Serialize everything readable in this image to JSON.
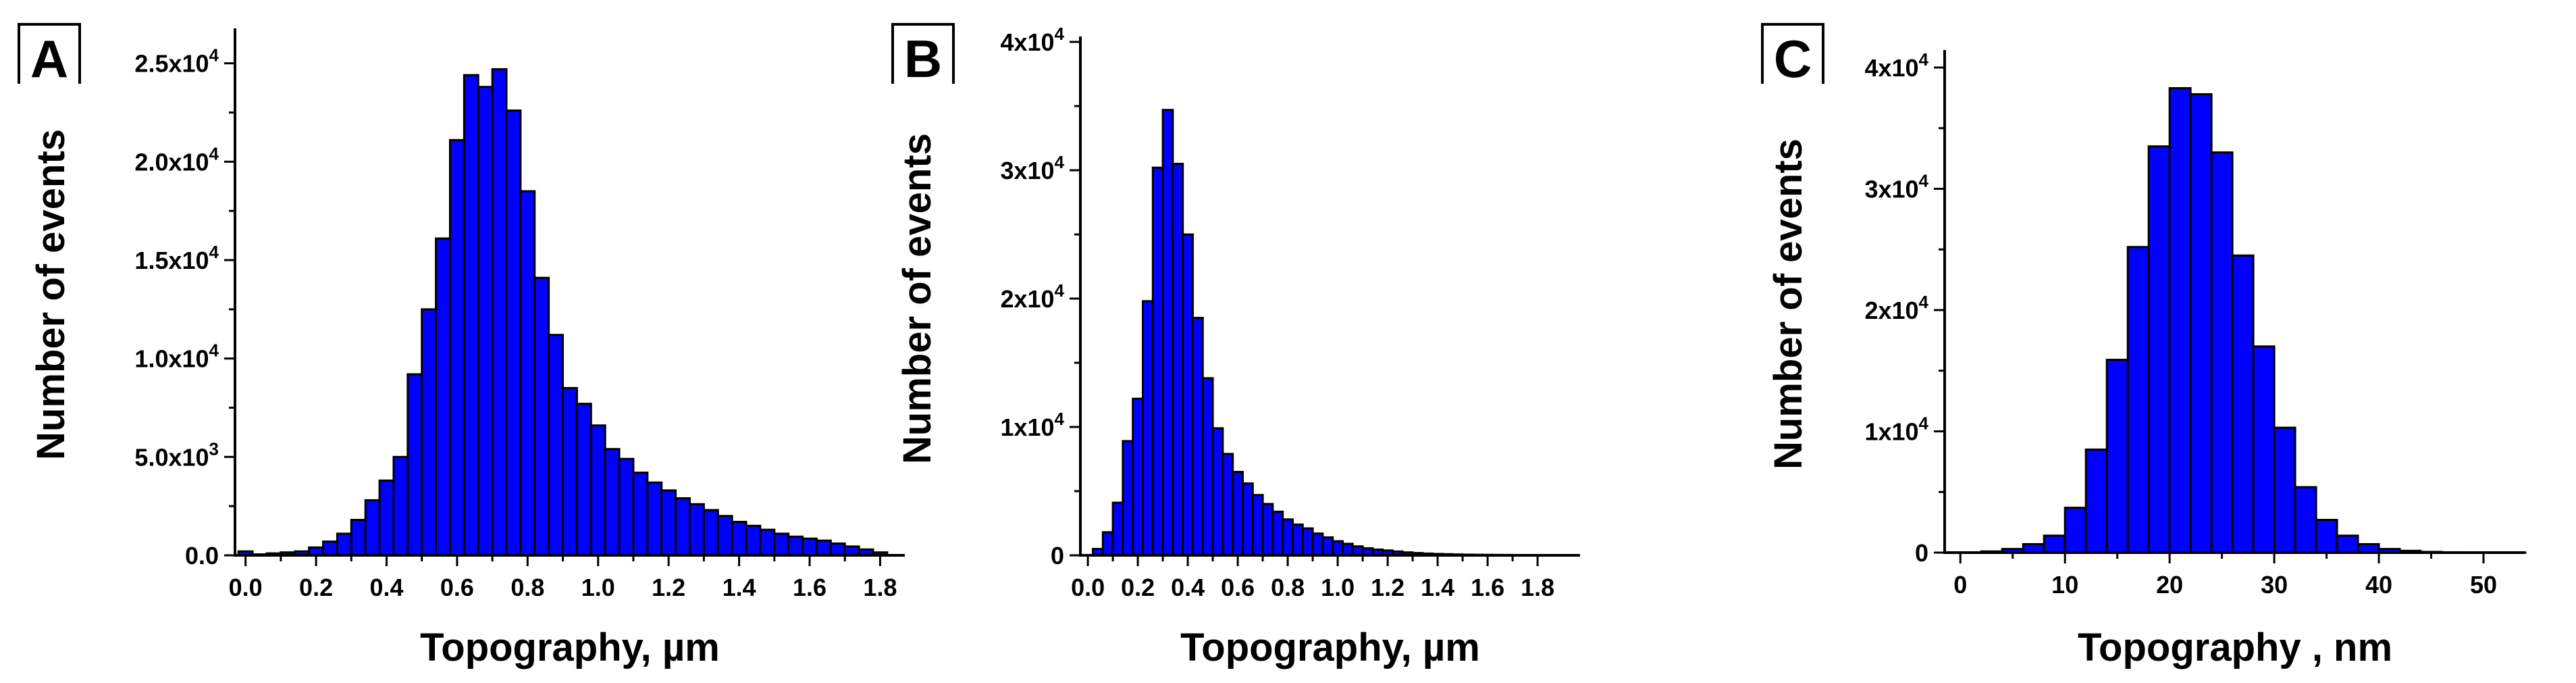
{
  "figure": {
    "panels": [
      {
        "letter": "A"
      },
      {
        "letter": "B"
      },
      {
        "letter": "C"
      }
    ]
  },
  "chart_data": [
    {
      "type": "bar",
      "panel_label": "A",
      "xlabel": "Topography, µm",
      "ylabel": "Number of events",
      "xlim": [
        -0.03,
        1.87
      ],
      "ylim": [
        0,
        26500
      ],
      "bin_width": 0.04,
      "bar_fill": "#0000ff",
      "bar_stroke": "#000000",
      "xticks": [
        0.0,
        0.2,
        0.4,
        0.6,
        0.8,
        1.0,
        1.2,
        1.4,
        1.6,
        1.8
      ],
      "xtick_labels": [
        "0.0",
        "0.2",
        "0.4",
        "0.6",
        "0.8",
        "1.0",
        "1.2",
        "1.4",
        "1.6",
        "1.8"
      ],
      "yticks": [
        0,
        5000,
        10000,
        15000,
        20000,
        25000
      ],
      "ytick_labels": [
        {
          "mantissa": "0.0",
          "exp": ""
        },
        {
          "mantissa": "5.0x10",
          "exp": "3"
        },
        {
          "mantissa": "1.0x10",
          "exp": "4"
        },
        {
          "mantissa": "1.5x10",
          "exp": "4"
        },
        {
          "mantissa": "2.0x10",
          "exp": "4"
        },
        {
          "mantissa": "2.5x10",
          "exp": "4"
        }
      ],
      "bins": [
        0.0,
        0.04,
        0.08,
        0.12,
        0.16,
        0.2,
        0.24,
        0.28,
        0.32,
        0.36,
        0.4,
        0.44,
        0.48,
        0.52,
        0.56,
        0.6,
        0.64,
        0.68,
        0.72,
        0.76,
        0.8,
        0.84,
        0.88,
        0.92,
        0.96,
        1.0,
        1.04,
        1.08,
        1.12,
        1.16,
        1.2,
        1.24,
        1.28,
        1.32,
        1.36,
        1.4,
        1.44,
        1.48,
        1.52,
        1.56,
        1.6,
        1.64,
        1.68,
        1.72,
        1.76,
        1.8
      ],
      "values": [
        200,
        50,
        100,
        150,
        200,
        400,
        700,
        1100,
        1800,
        2800,
        3800,
        5000,
        9200,
        12500,
        16100,
        21100,
        24400,
        23800,
        24700,
        22600,
        18500,
        14100,
        11200,
        8500,
        7700,
        6600,
        5400,
        4900,
        4200,
        3700,
        3300,
        2900,
        2600,
        2300,
        2000,
        1700,
        1500,
        1300,
        1100,
        950,
        850,
        750,
        600,
        450,
        300,
        150
      ]
    },
    {
      "type": "bar",
      "panel_label": "B",
      "xlabel": "Topography, µm",
      "ylabel": "Number of events",
      "xlim": [
        -0.03,
        1.97
      ],
      "ylim": [
        0,
        40000
      ],
      "bin_width": 0.04,
      "bar_fill": "#0000ff",
      "bar_stroke": "#000000",
      "xticks": [
        0.0,
        0.2,
        0.4,
        0.6,
        0.8,
        1.0,
        1.2,
        1.4,
        1.6,
        1.8
      ],
      "xtick_labels": [
        "0.0",
        "0.2",
        "0.4",
        "0.6",
        "0.8",
        "1.0",
        "1.2",
        "1.4",
        "1.6",
        "1.8"
      ],
      "yticks": [
        0,
        10000,
        20000,
        30000,
        40000
      ],
      "ytick_labels": [
        {
          "mantissa": "0",
          "exp": ""
        },
        {
          "mantissa": "1x10",
          "exp": "4"
        },
        {
          "mantissa": "2x10",
          "exp": "4"
        },
        {
          "mantissa": "3x10",
          "exp": "4"
        },
        {
          "mantissa": "4x10",
          "exp": "4"
        }
      ],
      "bins": [
        0.04,
        0.08,
        0.12,
        0.16,
        0.2,
        0.24,
        0.28,
        0.32,
        0.36,
        0.4,
        0.44,
        0.48,
        0.52,
        0.56,
        0.6,
        0.64,
        0.68,
        0.72,
        0.76,
        0.8,
        0.84,
        0.88,
        0.92,
        0.96,
        1.0,
        1.04,
        1.08,
        1.12,
        1.16,
        1.2,
        1.24,
        1.28,
        1.32,
        1.36,
        1.4,
        1.44,
        1.48,
        1.52,
        1.56,
        1.6,
        1.64,
        1.68,
        1.72,
        1.76,
        1.8,
        1.84,
        1.88
      ],
      "values": [
        500,
        1800,
        4100,
        8900,
        12200,
        19800,
        30200,
        34700,
        30500,
        25000,
        18500,
        13800,
        9900,
        7900,
        6500,
        5600,
        4700,
        4000,
        3400,
        2800,
        2400,
        2100,
        1700,
        1400,
        1100,
        900,
        700,
        550,
        450,
        380,
        300,
        230,
        180,
        140,
        110,
        90,
        70,
        55,
        45,
        40,
        35,
        30,
        25,
        20,
        15,
        10,
        8
      ]
    },
    {
      "type": "bar",
      "panel_label": "C",
      "xlabel": "Topography , nm",
      "ylabel": "Number of events",
      "xlim": [
        -1.5,
        54
      ],
      "ylim": [
        0,
        41000
      ],
      "bin_width": 2,
      "bar_fill": "#0000ff",
      "bar_stroke": "#000000",
      "xticks": [
        0,
        10,
        20,
        30,
        40,
        50
      ],
      "xtick_labels": [
        "0",
        "10",
        "20",
        "30",
        "40",
        "50"
      ],
      "yticks": [
        0,
        10000,
        20000,
        30000,
        40000
      ],
      "ytick_labels": [
        {
          "mantissa": "0",
          "exp": ""
        },
        {
          "mantissa": "1x10",
          "exp": "4"
        },
        {
          "mantissa": "2x10",
          "exp": "4"
        },
        {
          "mantissa": "3x10",
          "exp": "4"
        },
        {
          "mantissa": "4x10",
          "exp": "4"
        }
      ],
      "bins": [
        1,
        3,
        5,
        7,
        9,
        11,
        13,
        15,
        17,
        19,
        21,
        23,
        25,
        27,
        29,
        31,
        33,
        35,
        37,
        39,
        41,
        43,
        45,
        47,
        49,
        51,
        53
      ],
      "values": [
        20,
        100,
        300,
        700,
        1400,
        3700,
        8500,
        15900,
        25200,
        33500,
        38300,
        37800,
        33000,
        24500,
        17000,
        10300,
        5400,
        2700,
        1400,
        700,
        300,
        150,
        60,
        30,
        15,
        8,
        5
      ]
    }
  ]
}
